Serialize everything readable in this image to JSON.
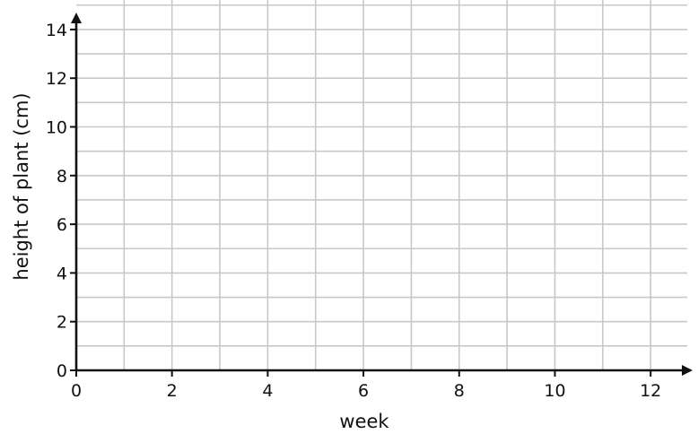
{
  "chart_data": {
    "type": "line",
    "title": "",
    "xlabel": "week",
    "ylabel": "height of plant (cm)",
    "xlim": [
      0,
      13
    ],
    "ylim": [
      0,
      15
    ],
    "x_ticks": [
      0,
      2,
      4,
      6,
      8,
      10,
      12
    ],
    "y_ticks": [
      0,
      2,
      4,
      6,
      8,
      10,
      12,
      14
    ],
    "x_grid_step": 1,
    "y_grid_step": 1,
    "grid": true,
    "series": [],
    "colors": {
      "grid": "#c8c8c8",
      "axis": "#111111",
      "text": "#111111"
    }
  }
}
